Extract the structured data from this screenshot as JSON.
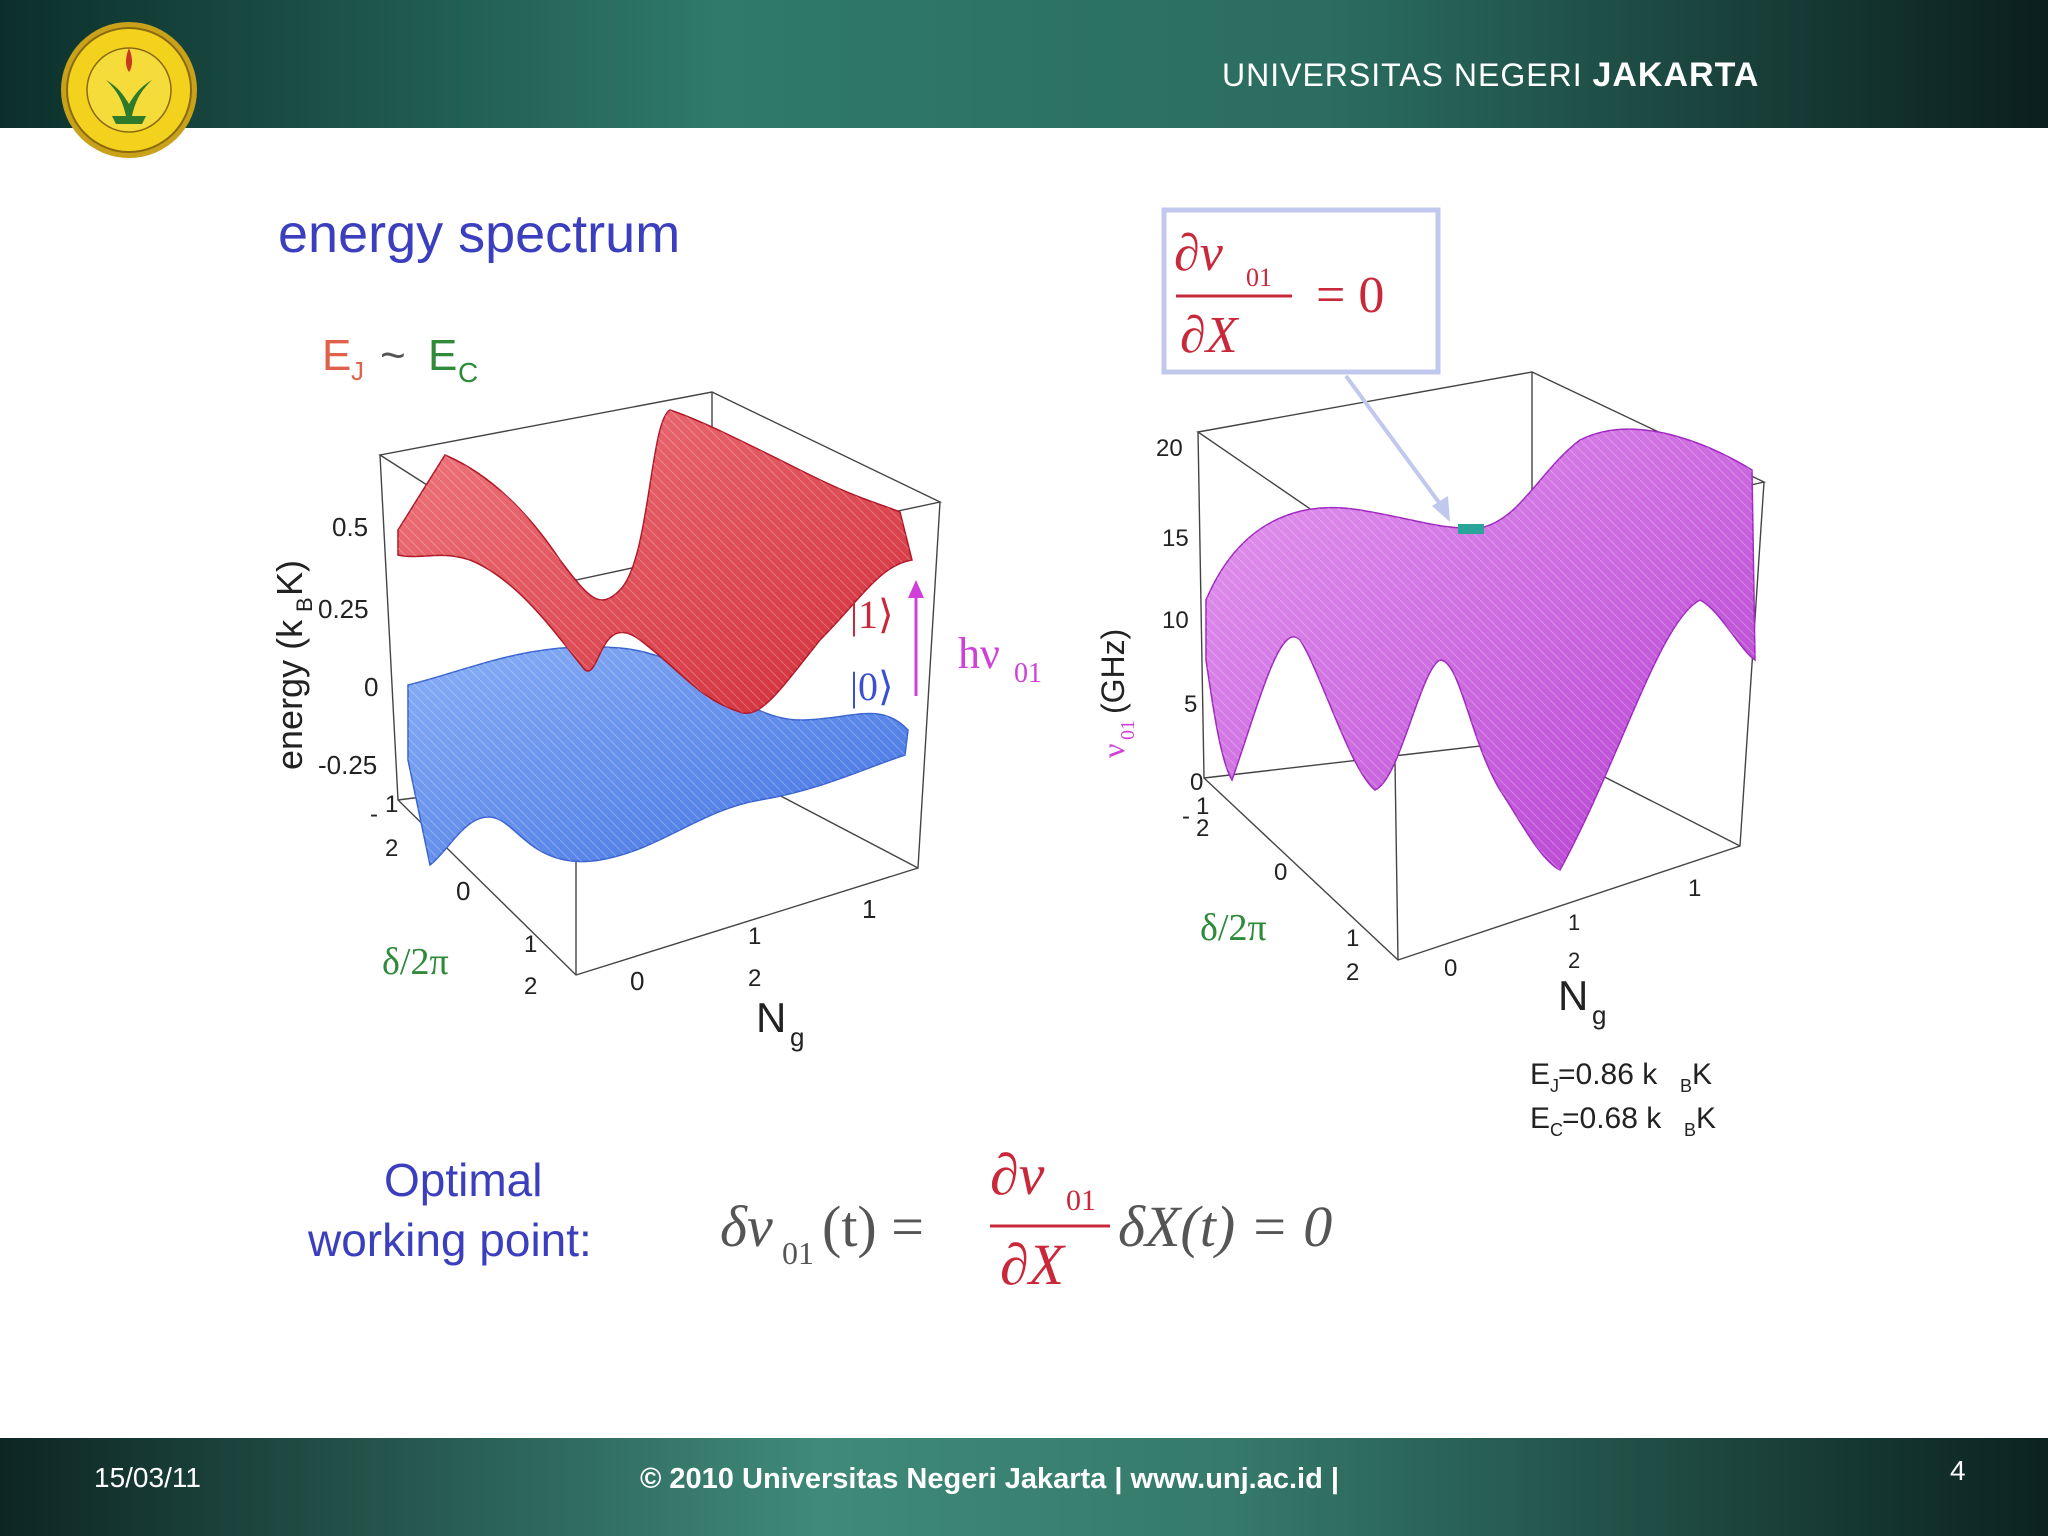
{
  "header": {
    "university_prefix": "UNIVERSITAS NEGERI",
    "university_name": "JAKARTA",
    "logo_icon": "university-seal-icon"
  },
  "slide": {
    "title": "energy spectrum",
    "ej_label": "E",
    "ej_sub": "J",
    "tilde": "~",
    "ec_label": "E",
    "ec_sub": "C",
    "left_plot": {
      "y_axis_label": "energy (k",
      "y_axis_sub": "B",
      "y_axis_unit": "K)",
      "z_ticks": [
        "0.5",
        "0.25",
        "0",
        "-0.25"
      ],
      "delta_axis_label": "δ/2π",
      "delta_ticks": [
        "-",
        "1",
        "2",
        "0",
        "1",
        "2"
      ],
      "ng_axis_label": "N",
      "ng_sub": "g",
      "ng_ticks": [
        "0",
        "1",
        "2",
        "1"
      ],
      "state1": "|1⟩",
      "state0": "|0⟩",
      "transition": "hν",
      "transition_sub": "01"
    },
    "right_plot": {
      "y_axis_label": "(GHz)",
      "y_axis_symbol": "ν",
      "y_axis_sub": "01",
      "z_ticks": [
        "20",
        "15",
        "10",
        "5",
        "0"
      ],
      "delta_axis_label": "δ/2π",
      "delta_ticks": [
        "-",
        "1",
        "2",
        "0",
        "1",
        "2"
      ],
      "ng_axis_label": "N",
      "ng_sub": "g",
      "ng_ticks": [
        "0",
        "1",
        "2",
        "1"
      ],
      "box_formula_num": "∂ν",
      "box_formula_num_sub": "01",
      "box_formula_den": "∂X",
      "box_formula_rhs": "= 0"
    },
    "params": {
      "ej": "E",
      "ej_sub": "J",
      "ej_val": "=0.86 k",
      "ej_kb_sub": "B",
      "ej_unit": "K",
      "ec": "E",
      "ec_sub": "C",
      "ec_val": "=0.68 k",
      "ec_kb_sub": "B",
      "ec_unit": "K"
    },
    "optimal_line1": "Optimal",
    "optimal_line2": "working point:",
    "equation": {
      "lhs": "δν",
      "lhs_sub": "01",
      "lhs_arg": "(t) =",
      "frac_num": "∂ν",
      "frac_num_sub": "01",
      "frac_den": "∂X",
      "rhs": "δX(t) = 0"
    }
  },
  "footer": {
    "date": "15/03/11",
    "copyright": "©  2010 Universitas Negeri Jakarta   |  www.unj.ac.id   |",
    "page_number": "4"
  },
  "colors": {
    "title_blue": "#3b3fbe",
    "red_band": "#e0404a",
    "blue_band": "#5a8ef0",
    "magenta": "#d040d8",
    "green": "#2f8a3a"
  }
}
